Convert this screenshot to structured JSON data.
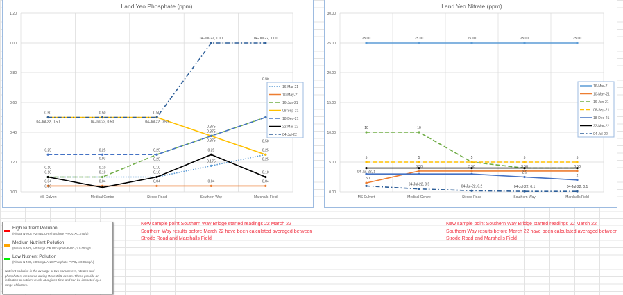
{
  "chart_data": [
    {
      "type": "line",
      "title": "Land Yeo Phosphate (ppm)",
      "categories": [
        "MS Culvert",
        "Medical Centre",
        "Strode Road",
        "Southern Way",
        "Marshalls Field"
      ],
      "ylim": [
        0,
        1.2
      ],
      "yticks": [
        "0.00",
        "0.20",
        "0.40",
        "0.60",
        "0.80",
        "1.00",
        "1.20"
      ],
      "grid": true,
      "legend": "right",
      "series": [
        {
          "name": "16-Mar-21",
          "color": "#5b9bd5",
          "dash": "1.5,2",
          "values": [
            0.1,
            0.1,
            0.1,
            0.175,
            0.25
          ],
          "labels": [
            "0.10",
            "0.10",
            "0.10",
            "0.175",
            "0.25"
          ]
        },
        {
          "name": "10-May-21",
          "color": "#ed7d31",
          "dash": "",
          "values": [
            0.04,
            0.04,
            0.04,
            0.04,
            0.04
          ],
          "labels": [
            "0.04",
            "0.04",
            "0.04",
            "0.04",
            "0.04"
          ]
        },
        {
          "name": "16-Jun-21",
          "color": "#70ad47",
          "dash": "6,3",
          "values": [
            0.1,
            0.1,
            0.25,
            0.375,
            0.5
          ],
          "labels": [
            "0.10",
            "0.10",
            "0.25",
            "0.375",
            "0.50"
          ]
        },
        {
          "name": "08-Sep-21",
          "color": "#ffc000",
          "dash": "",
          "values": [
            0.5,
            0.5,
            0.5,
            0.375,
            0.25
          ],
          "labels": [
            "0.50",
            "0.50",
            "0.50",
            "0.375",
            "0.25"
          ]
        },
        {
          "name": "18-Dec-21",
          "color": "#4472c4",
          "dash": "6,3",
          "values": [
            0.25,
            0.25,
            0.25,
            0.375,
            0.5
          ],
          "labels": [
            "0.25",
            "0.25",
            "0.25",
            "0.375",
            "0.50"
          ]
        },
        {
          "name": "22-Mar-22",
          "color": "#000000",
          "dash": "",
          "values": [
            0.1,
            0.03,
            0.1,
            0.25,
            0.1
          ],
          "labels": [
            "0.10",
            "0.03",
            "0.10",
            "0.25",
            "0.10"
          ]
        },
        {
          "name": "04-Jul-22",
          "color": "#2e5f99",
          "dash": "6,3,1.5,3",
          "values": [
            0.5,
            0.5,
            0.5,
            1.0,
            1.0
          ],
          "labels": [
            "04-Jul-22, 0.50",
            "04-Jul-22, 0.50",
            "04-Jul-22, 0.50",
            "04-Jul-22, 1.00",
            "04-Jul-22, 1.00"
          ]
        }
      ]
    },
    {
      "type": "line",
      "title": "Land Yeo Nitrate (ppm)",
      "categories": [
        "MS Culvert",
        "Medical Centre",
        "Strode Road",
        "Southern Way",
        "Marshalls Field"
      ],
      "ylim": [
        0,
        30
      ],
      "yticks": [
        "0.00",
        "5.00",
        "10.00",
        "15.00",
        "20.00",
        "25.00",
        "30.00"
      ],
      "grid": true,
      "legend": "right",
      "series": [
        {
          "name": "16-Mar-21",
          "color": "#5b9bd5",
          "dash": "",
          "values": [
            25,
            25,
            25,
            25,
            25
          ],
          "labels": [
            "25.00",
            "25.00",
            "25.00",
            "25.00",
            "25.00"
          ]
        },
        {
          "name": "10-May-21",
          "color": "#ed7d31",
          "dash": "",
          "values": [
            1.5,
            3.5,
            3.5,
            3.5,
            3.5
          ],
          "labels": [
            "1.50",
            "3.50",
            "3.50",
            "3.50",
            "3.50"
          ]
        },
        {
          "name": "16-Jun-21",
          "color": "#70ad47",
          "dash": "6,3",
          "values": [
            10,
            10,
            5,
            4,
            4
          ],
          "labels": [
            "10",
            "10",
            "",
            "",
            ""
          ]
        },
        {
          "name": "08-Sep-21",
          "color": "#ffc000",
          "dash": "6,3",
          "values": [
            5,
            5,
            5,
            5,
            5
          ],
          "labels": [
            "5",
            "5",
            "5",
            "5",
            "5"
          ]
        },
        {
          "name": "18-Dec-21",
          "color": "#4472c4",
          "dash": "",
          "values": [
            3,
            3,
            3,
            2.5,
            2
          ],
          "labels": [
            "",
            "",
            "",
            "2.5",
            "2"
          ]
        },
        {
          "name": "22-Mar-22",
          "color": "#000000",
          "dash": "",
          "values": [
            4,
            4,
            4,
            4,
            4
          ],
          "labels": [
            "",
            "",
            "",
            "",
            ""
          ]
        },
        {
          "name": "04-Jul-22",
          "color": "#2e5f99",
          "dash": "6,3,1.5,3",
          "values": [
            1,
            0.5,
            0.2,
            0.1,
            0.1
          ],
          "labels": [
            "04-Jul-22, 1",
            "04-Jul-22, 0.5",
            "04-Jul-22, 0.2",
            "04-Jul-22, 0.1",
            "04-Jul-22, 0.1"
          ]
        }
      ]
    }
  ],
  "key": {
    "items": [
      {
        "title": "High Nutrient Pollution",
        "detail": "(Nitrate N-NO₃ > 2mg/L OR Phosphate P-PO₄ > 0.1mg/L)",
        "color": "#ff0000"
      },
      {
        "title": "Medium Nutrient Pollution",
        "detail": "(Nitrate N-NO₃ > 0.5mg/L OR Phosphate P-PO₄ > 0.05mg/L)",
        "color": "#ffa500"
      },
      {
        "title": "Low Nutrient Pollution",
        "detail": "(Nitrate N-NO₃ ≤ 0.5mg/L AND Phosphate P-PO₄ ≤ 0.05mg/L)",
        "color": "#00e000"
      }
    ],
    "note": "Nutrient pollution is the average of two parameters, nitrates and phosphates, measured during WaterBlitz events. These provide an indication of nutrient levels at a given time and can be impacted by a range of factors."
  },
  "notes": [
    "New sample point Southern Way Bridge started readings 22 March 22",
    "Southern Way results before March 22 have been calculated  averaged between",
    "Strode Road and Marshalls Field"
  ]
}
